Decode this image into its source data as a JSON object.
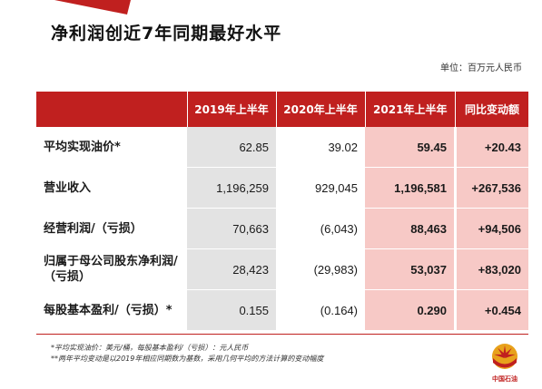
{
  "title": "净利润创近7年同期最好水平",
  "unit": "单位：百万元人民币",
  "table": {
    "headers": [
      "",
      "2019年上半年",
      "2020年上半年",
      "2021年上半年",
      "同比变动额"
    ],
    "rows": [
      {
        "label": "平均实现油价*",
        "v2019": "62.85",
        "v2020": "39.02",
        "v2021": "59.45",
        "change": "+20.43"
      },
      {
        "label": "营业收入",
        "v2019": "1,196,259",
        "v2020": "929,045",
        "v2021": "1,196,581",
        "change": "+267,536"
      },
      {
        "label": "经营利润/（亏损）",
        "v2019": "70,663",
        "v2020": "(6,043)",
        "v2021": "88,463",
        "change": "+94,506"
      },
      {
        "label": "归属于母公司股东净利润/（亏损）",
        "v2019": "28,423",
        "v2020": "(29,983)",
        "v2021": "53,037",
        "change": "+83,020"
      },
      {
        "label": "每股基本盈利/（亏损）*",
        "v2019": "0.155",
        "v2020": "(0.164)",
        "v2021": "0.290",
        "change": "+0.454"
      }
    ]
  },
  "footnotes": [
    "*平均实现油价：美元/桶，每股基本盈利/（亏损）：元人民币",
    "**两年平均变动是以2019年相应同期数为基数，采用几何平均的方法计算的变动幅度"
  ],
  "logo": {
    "text": "中国石油",
    "icon": "petrochina-logo-icon"
  },
  "colors": {
    "accent": "#c0201f",
    "highlight": "#f7c9c6",
    "gray": "#e3e3e3"
  }
}
